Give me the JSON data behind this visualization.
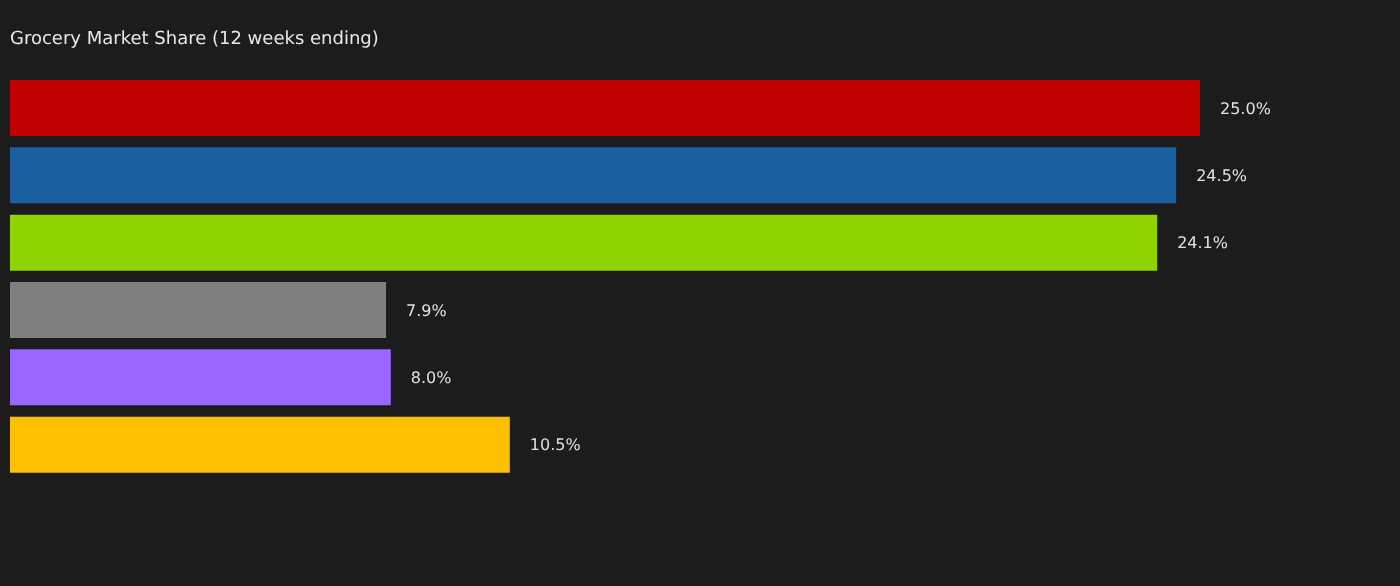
{
  "chart_data": {
    "type": "bar",
    "orientation": "horizontal",
    "title": "Grocery Market Share (12 weeks ending)",
    "categories": [
      null,
      null,
      null,
      null,
      null,
      null
    ],
    "values": [
      25.0,
      24.5,
      24.1,
      7.9,
      8.0,
      10.5
    ],
    "colors": [
      "#c00000",
      "#1a5fa0",
      "#8fd400",
      "#7f7f7f",
      "#9966ff",
      "#ffc000"
    ],
    "value_labels": [
      "25.0%",
      "24.5%",
      "24.1%",
      "7.9%",
      "8.0%",
      "10.5%"
    ]
  }
}
